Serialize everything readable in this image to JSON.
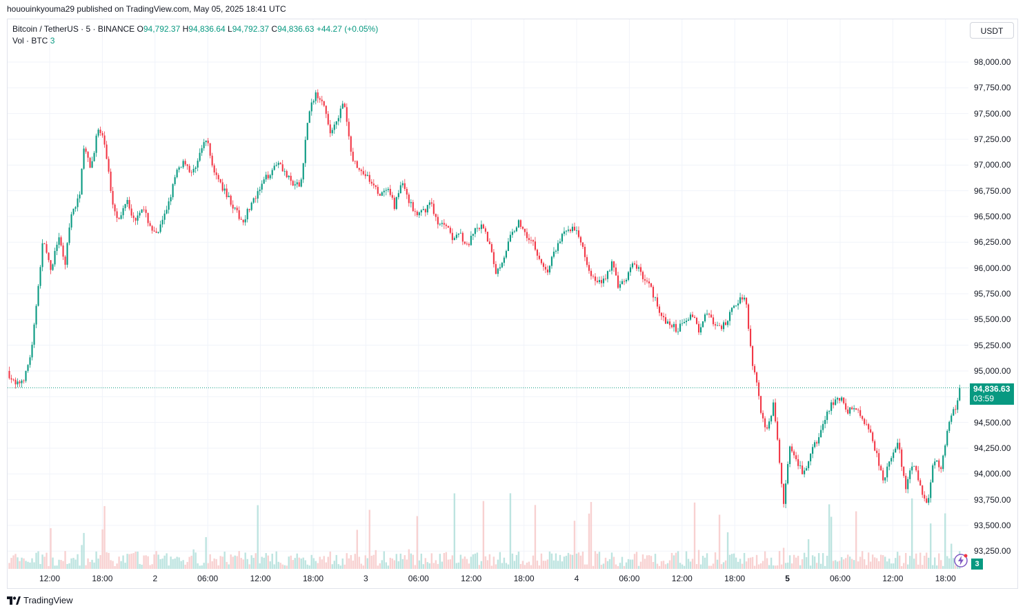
{
  "header": {
    "published": "hououinkyouma29 published on TradingView.com, May 05, 2025 18:41 UTC"
  },
  "legend": {
    "symbol": "Bitcoin / TetherUS · 5 · BINANCE",
    "o_label": "O",
    "o_value": "94,792.37",
    "h_label": "H",
    "h_value": "94,836.64",
    "l_label": "L",
    "l_value": "94,792.37",
    "c_label": "C",
    "c_value": "94,836.63",
    "change": "+44.27 (+0.05%)",
    "vol_label": "Vol · BTC",
    "vol_value": "3"
  },
  "currency_button": "USDT",
  "price_tag": {
    "price": "94,836.63",
    "countdown": "03:59"
  },
  "volume_tag": "3",
  "footer": {
    "brand": "TradingView"
  },
  "colors": {
    "up": "#089981",
    "down": "#f23645",
    "vol_up": "#b2dfdb",
    "vol_down": "#f7c9c9",
    "grid": "#f0f3fa"
  },
  "chart_data": {
    "type": "candlestick",
    "symbol": "Bitcoin / TetherUS",
    "interval": "5",
    "exchange": "BINANCE",
    "y_ticks": [
      "98,000.00",
      "97,750.00",
      "97,500.00",
      "97,250.00",
      "97,000.00",
      "96,750.00",
      "96,500.00",
      "96,250.00",
      "96,000.00",
      "95,750.00",
      "95,500.00",
      "95,250.00",
      "95,000.00",
      "94,750.00",
      "94,500.00",
      "94,250.00",
      "94,000.00",
      "93,750.00",
      "93,500.00",
      "93,250.00"
    ],
    "y_range": [
      93100,
      98200
    ],
    "x_ticks": [
      {
        "label": "12:00",
        "bold": false
      },
      {
        "label": "18:00",
        "bold": false
      },
      {
        "label": "2",
        "bold": false
      },
      {
        "label": "06:00",
        "bold": false
      },
      {
        "label": "12:00",
        "bold": false
      },
      {
        "label": "18:00",
        "bold": false
      },
      {
        "label": "3",
        "bold": false
      },
      {
        "label": "06:00",
        "bold": false
      },
      {
        "label": "12:00",
        "bold": false
      },
      {
        "label": "18:00",
        "bold": false
      },
      {
        "label": "4",
        "bold": false
      },
      {
        "label": "06:00",
        "bold": false
      },
      {
        "label": "12:00",
        "bold": false
      },
      {
        "label": "18:00",
        "bold": false
      },
      {
        "label": "5",
        "bold": true
      },
      {
        "label": "06:00",
        "bold": false
      },
      {
        "label": "12:00",
        "bold": false
      },
      {
        "label": "18:00",
        "bold": false
      }
    ],
    "path_points": [
      [
        0,
        95000
      ],
      [
        0.012,
        94850
      ],
      [
        0.025,
        94950
      ],
      [
        0.035,
        95250
      ],
      [
        0.042,
        95800
      ],
      [
        0.05,
        96300
      ],
      [
        0.06,
        95950
      ],
      [
        0.07,
        96300
      ],
      [
        0.08,
        96050
      ],
      [
        0.088,
        96500
      ],
      [
        0.1,
        96700
      ],
      [
        0.105,
        97200
      ],
      [
        0.115,
        96950
      ],
      [
        0.125,
        97350
      ],
      [
        0.135,
        97200
      ],
      [
        0.145,
        96650
      ],
      [
        0.155,
        96450
      ],
      [
        0.165,
        96700
      ],
      [
        0.175,
        96450
      ],
      [
        0.185,
        96600
      ],
      [
        0.195,
        96450
      ],
      [
        0.205,
        96300
      ],
      [
        0.215,
        96450
      ],
      [
        0.225,
        96700
      ],
      [
        0.235,
        96950
      ],
      [
        0.245,
        97050
      ],
      [
        0.255,
        96900
      ],
      [
        0.265,
        97100
      ],
      [
        0.275,
        97250
      ],
      [
        0.285,
        96950
      ],
      [
        0.295,
        96800
      ],
      [
        0.305,
        96700
      ],
      [
        0.315,
        96550
      ],
      [
        0.325,
        96450
      ],
      [
        0.335,
        96600
      ],
      [
        0.345,
        96700
      ],
      [
        0.355,
        96850
      ],
      [
        0.365,
        96950
      ],
      [
        0.375,
        97050
      ],
      [
        0.385,
        96900
      ],
      [
        0.395,
        96800
      ],
      [
        0.405,
        96800
      ],
      [
        0.415,
        97450
      ],
      [
        0.425,
        97700
      ],
      [
        0.435,
        97650
      ],
      [
        0.445,
        97300
      ],
      [
        0.455,
        97450
      ],
      [
        0.465,
        97600
      ],
      [
        0.475,
        97100
      ],
      [
        0.485,
        96950
      ],
      [
        0.495,
        96900
      ],
      [
        0.505,
        96800
      ],
      [
        0.515,
        96700
      ],
      [
        0.525,
        96750
      ],
      [
        0.535,
        96600
      ],
      [
        0.545,
        96850
      ],
      [
        0.555,
        96650
      ],
      [
        0.565,
        96500
      ],
      [
        0.575,
        96550
      ],
      [
        0.585,
        96650
      ],
      [
        0.595,
        96400
      ],
      [
        0.605,
        96450
      ],
      [
        0.615,
        96300
      ],
      [
        0.625,
        96350
      ],
      [
        0.635,
        96200
      ],
      [
        0.645,
        96350
      ],
      [
        0.655,
        96400
      ],
      [
        0.665,
        96250
      ],
      [
        0.675,
        95950
      ],
      [
        0.685,
        96100
      ],
      [
        0.695,
        96300
      ],
      [
        0.705,
        96450
      ],
      [
        0.715,
        96350
      ],
      [
        0.725,
        96250
      ],
      [
        0.735,
        96100
      ],
      [
        0.745,
        95950
      ],
      [
        0.755,
        96150
      ],
      [
        0.765,
        96300
      ],
      [
        0.775,
        96400
      ],
      [
        0.785,
        96350
      ],
      [
        0.795,
        96200
      ],
      [
        0.805,
        95950
      ],
      [
        0.815,
        95850
      ],
      [
        0.825,
        95900
      ],
      [
        0.835,
        96050
      ],
      [
        0.845,
        95800
      ],
      [
        0.855,
        95900
      ],
      [
        0.865,
        96050
      ],
      [
        0.875,
        95950
      ],
      [
        0.885,
        95850
      ],
      [
        0.895,
        95700
      ],
      [
        0.905,
        95500
      ],
      [
        0.915,
        95450
      ],
      [
        0.925,
        95400
      ],
      [
        0.935,
        95500
      ],
      [
        0.945,
        95550
      ],
      [
        0.955,
        95400
      ],
      [
        0.965,
        95600
      ],
      [
        0.975,
        95450
      ],
      [
        0.985,
        95400
      ],
      [
        0.995,
        95500
      ],
      [
        1.005,
        95650
      ],
      [
        1.015,
        95720
      ],
      [
        1.02,
        95700
      ],
      [
        1.028,
        95100
      ],
      [
        1.035,
        94900
      ],
      [
        1.042,
        94550
      ],
      [
        1.05,
        94400
      ],
      [
        1.058,
        94700
      ],
      [
        1.065,
        94200
      ],
      [
        1.072,
        93700
      ],
      [
        1.08,
        94250
      ],
      [
        1.09,
        94100
      ],
      [
        1.1,
        94000
      ],
      [
        1.11,
        94200
      ],
      [
        1.12,
        94350
      ],
      [
        1.13,
        94550
      ],
      [
        1.14,
        94700
      ],
      [
        1.15,
        94750
      ],
      [
        1.16,
        94600
      ],
      [
        1.17,
        94650
      ],
      [
        1.18,
        94550
      ],
      [
        1.19,
        94450
      ],
      [
        1.2,
        94200
      ],
      [
        1.21,
        93950
      ],
      [
        1.22,
        94150
      ],
      [
        1.23,
        94300
      ],
      [
        1.24,
        93850
      ],
      [
        1.25,
        94100
      ],
      [
        1.26,
        93900
      ],
      [
        1.27,
        93700
      ],
      [
        1.28,
        94150
      ],
      [
        1.29,
        94050
      ],
      [
        1.3,
        94500
      ],
      [
        1.31,
        94650
      ],
      [
        1.315,
        94836
      ]
    ]
  }
}
